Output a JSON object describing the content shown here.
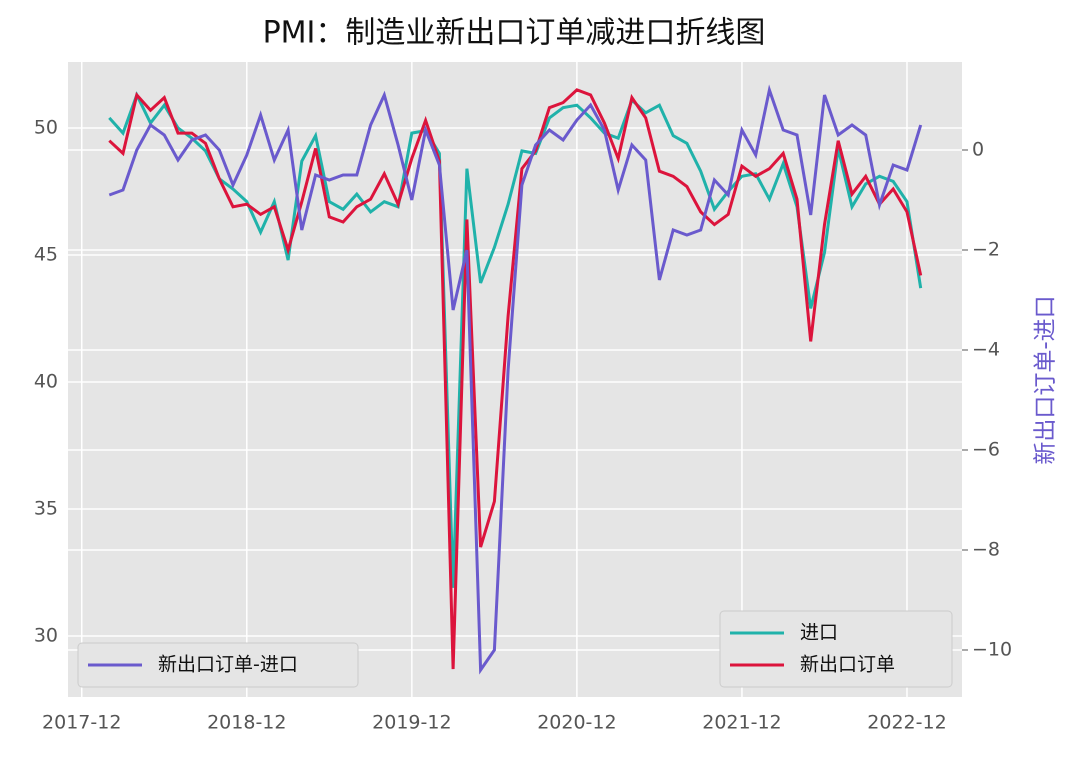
{
  "chart_data": {
    "type": "line",
    "title": "PMI：制造业新出口订单减进口折线图",
    "y2label": "新出口订单-进口",
    "x": [
      "2018-01",
      "2018-02",
      "2018-03",
      "2018-04",
      "2018-05",
      "2018-06",
      "2018-07",
      "2018-08",
      "2018-09",
      "2018-10",
      "2018-11",
      "2018-12",
      "2019-01",
      "2019-02",
      "2019-03",
      "2019-04",
      "2019-05",
      "2019-06",
      "2019-07",
      "2019-08",
      "2019-09",
      "2019-10",
      "2019-11",
      "2019-12",
      "2020-01",
      "2020-02",
      "2020-03",
      "2020-04",
      "2020-05",
      "2020-06",
      "2020-07",
      "2020-08",
      "2020-09",
      "2020-10",
      "2020-11",
      "2020-12",
      "2021-01",
      "2021-02",
      "2021-03",
      "2021-04",
      "2021-05",
      "2021-06",
      "2021-07",
      "2021-08",
      "2021-09",
      "2021-10",
      "2021-11",
      "2021-12",
      "2022-01",
      "2022-02",
      "2022-03",
      "2022-04",
      "2022-05",
      "2022-06",
      "2022-07",
      "2022-08",
      "2022-09",
      "2022-10",
      "2022-11",
      "2022-12"
    ],
    "series": [
      {
        "name": "进口",
        "color": "#20b2aa",
        "legend": "lower right",
        "values": [
          50.4,
          49.8,
          51.3,
          50.2,
          50.9,
          50.0,
          49.6,
          49.1,
          48.0,
          47.6,
          47.1,
          45.9,
          47.1,
          44.8,
          48.7,
          49.7,
          47.1,
          46.8,
          47.4,
          46.7,
          47.1,
          46.9,
          49.8,
          49.9,
          49.0,
          31.9,
          48.4,
          43.9,
          45.3,
          47.0,
          49.1,
          49.0,
          50.4,
          50.8,
          50.9,
          50.4,
          49.8,
          49.6,
          51.1,
          50.6,
          50.9,
          49.7,
          49.4,
          48.3,
          46.8,
          47.5,
          48.1,
          48.2,
          47.2,
          48.6,
          46.9,
          42.9,
          45.1,
          49.2,
          46.9,
          47.8,
          48.1,
          47.9,
          47.1,
          43.7
        ]
      },
      {
        "name": "新出口订单",
        "color": "#dc143c",
        "legend": "lower right",
        "values": [
          49.5,
          49.0,
          51.3,
          50.7,
          51.2,
          49.8,
          49.8,
          49.4,
          48.0,
          46.9,
          47.0,
          46.6,
          46.9,
          45.2,
          47.1,
          49.2,
          46.5,
          46.3,
          46.9,
          47.2,
          48.2,
          47.0,
          48.8,
          50.3,
          48.7,
          28.7,
          46.4,
          33.5,
          35.3,
          42.6,
          48.4,
          49.1,
          50.8,
          51.0,
          51.5,
          51.3,
          50.2,
          48.8,
          51.2,
          50.4,
          48.3,
          48.1,
          47.7,
          46.7,
          46.2,
          46.6,
          48.5,
          48.1,
          48.4,
          49.0,
          47.2,
          41.6,
          46.2,
          49.5,
          47.4,
          48.1,
          47.0,
          47.6,
          46.7,
          44.2
        ]
      },
      {
        "name": "新出口订单-进口",
        "color": "#6a5acd",
        "legend": "lower left",
        "axis": "y2",
        "values": [
          -0.9,
          -0.8,
          0.0,
          0.5,
          0.3,
          -0.2,
          0.2,
          0.3,
          0.0,
          -0.7,
          -0.1,
          0.7,
          -0.2,
          0.4,
          -1.6,
          -0.5,
          -0.6,
          -0.5,
          -0.5,
          0.5,
          1.1,
          0.1,
          -1.0,
          0.4,
          -0.3,
          -3.2,
          -2.0,
          -10.4,
          -10.0,
          -4.4,
          -0.7,
          0.1,
          0.4,
          0.2,
          0.6,
          0.9,
          0.4,
          -0.8,
          0.1,
          -0.2,
          -2.6,
          -1.6,
          -1.7,
          -1.6,
          -0.6,
          -0.9,
          0.4,
          -0.1,
          1.2,
          0.4,
          0.3,
          -1.3,
          1.1,
          0.3,
          0.5,
          0.3,
          -1.1,
          -0.3,
          -0.4,
          0.5
        ]
      }
    ],
    "xlim": [
      "2017-11",
      "2023-04"
    ],
    "xticks": [
      "2017-12",
      "2018-12",
      "2019-12",
      "2020-12",
      "2021-12",
      "2022-12"
    ],
    "ylim": [
      27.6,
      52.6
    ],
    "yticks": [
      30,
      35,
      40,
      45,
      50
    ],
    "y2lim": [
      -10.94,
      1.76
    ],
    "y2ticks": [
      {
        "value": -10,
        "label": "−10"
      },
      {
        "value": -8,
        "label": "−8"
      },
      {
        "value": -6,
        "label": "−6"
      },
      {
        "value": -4,
        "label": "−4"
      },
      {
        "value": -2,
        "label": "−2"
      },
      0
    ],
    "grid": true
  }
}
